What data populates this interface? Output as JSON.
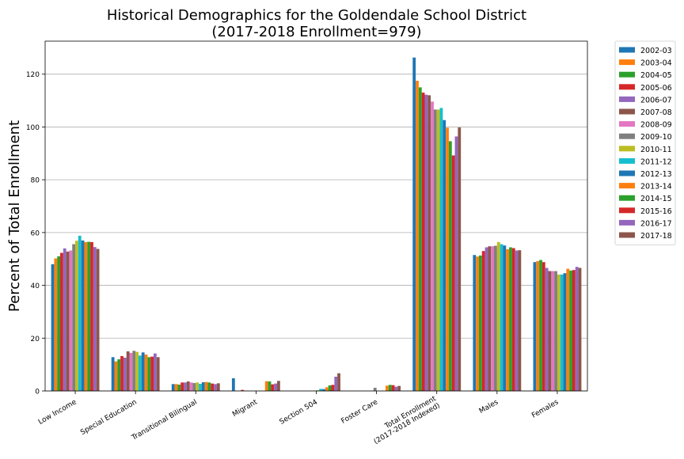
{
  "chart_data": {
    "type": "bar",
    "title_line1": "Historical Demographics for the Goldendale School District",
    "title_line2": "(2017-2018 Enrollment=979)",
    "xlabel": "",
    "ylabel": "Percent of Total Enrollment",
    "ylim": [
      0,
      132.5
    ],
    "yticks": [
      0,
      20,
      40,
      60,
      80,
      100,
      120
    ],
    "grid": true,
    "legend_placement": "outside-top-right",
    "categories": [
      [
        "Low Income"
      ],
      [
        "Special Education"
      ],
      [
        "Transitional Bilingual"
      ],
      [
        "Migrant"
      ],
      [
        "Section 504"
      ],
      [
        "Foster Care"
      ],
      [
        "Total Enrollment",
        "(2017-2018 Indexed)"
      ],
      [
        "Males"
      ],
      [
        "Females"
      ]
    ],
    "series": [
      {
        "name": "2002-03",
        "color": "#1f77b4",
        "values": [
          48,
          12.8,
          2.6,
          4.8,
          0,
          0,
          126.3,
          51.5,
          48.8
        ]
      },
      {
        "name": "2003-04",
        "color": "#ff7f0e",
        "values": [
          50.2,
          11.2,
          2.6,
          0,
          0,
          0,
          117.5,
          50.9,
          49.2
        ]
      },
      {
        "name": "2004-05",
        "color": "#2ca02c",
        "values": [
          51,
          12,
          2.4,
          0,
          0,
          0,
          115,
          51.3,
          49.6
        ]
      },
      {
        "name": "2005-06",
        "color": "#d62728",
        "values": [
          52.3,
          13.2,
          3.2,
          0.4,
          0,
          0,
          113,
          53,
          48.8
        ]
      },
      {
        "name": "2006-07",
        "color": "#9467bd",
        "values": [
          54,
          12.6,
          3.2,
          0,
          0,
          0,
          112.2,
          54.4,
          46.6
        ]
      },
      {
        "name": "2007-08",
        "color": "#8c564b",
        "values": [
          52.8,
          15,
          3.6,
          0,
          0,
          0,
          112,
          54.8,
          45.4
        ]
      },
      {
        "name": "2008-09",
        "color": "#e377c2",
        "values": [
          53.2,
          14.4,
          3.2,
          0,
          0,
          0,
          109.6,
          54.8,
          45.4
        ]
      },
      {
        "name": "2009-10",
        "color": "#7f7f7f",
        "values": [
          55.6,
          15.2,
          3,
          0,
          0,
          1.2,
          106.6,
          55,
          45.4
        ]
      },
      {
        "name": "2010-11",
        "color": "#bcbd22",
        "values": [
          56.9,
          14.8,
          3.2,
          0,
          0.3,
          0,
          106.6,
          56.4,
          44.1
        ]
      },
      {
        "name": "2011-12",
        "color": "#17becf",
        "values": [
          58.8,
          13.4,
          2.7,
          0,
          0.8,
          0,
          107.2,
          55.6,
          44.1
        ]
      },
      {
        "name": "2012-13",
        "color": "#1f77b4",
        "values": [
          57,
          14.6,
          3.3,
          0,
          0.7,
          0,
          102.6,
          55.1,
          44.6
        ]
      },
      {
        "name": "2013-14",
        "color": "#ff7f0e",
        "values": [
          56.4,
          13.8,
          3.4,
          3.7,
          1.4,
          2,
          99.7,
          53.7,
          46.3
        ]
      },
      {
        "name": "2014-15",
        "color": "#2ca02c",
        "values": [
          56.5,
          12.8,
          3.2,
          3.6,
          2.1,
          2.3,
          94.6,
          54.4,
          45.6
        ]
      },
      {
        "name": "2015-16",
        "color": "#d62728",
        "values": [
          56.4,
          13,
          2.8,
          2.5,
          2.3,
          2.2,
          89.2,
          54.1,
          45.8
        ]
      },
      {
        "name": "2016-17",
        "color": "#9467bd",
        "values": [
          54.5,
          14.2,
          2.6,
          2.8,
          5.4,
          1.6,
          96.4,
          53.2,
          47
        ]
      },
      {
        "name": "2017-18",
        "color": "#8c564b",
        "values": [
          53.8,
          12.8,
          2.9,
          3.8,
          6.7,
          1.9,
          99.8,
          53.3,
          46.6
        ]
      }
    ]
  }
}
